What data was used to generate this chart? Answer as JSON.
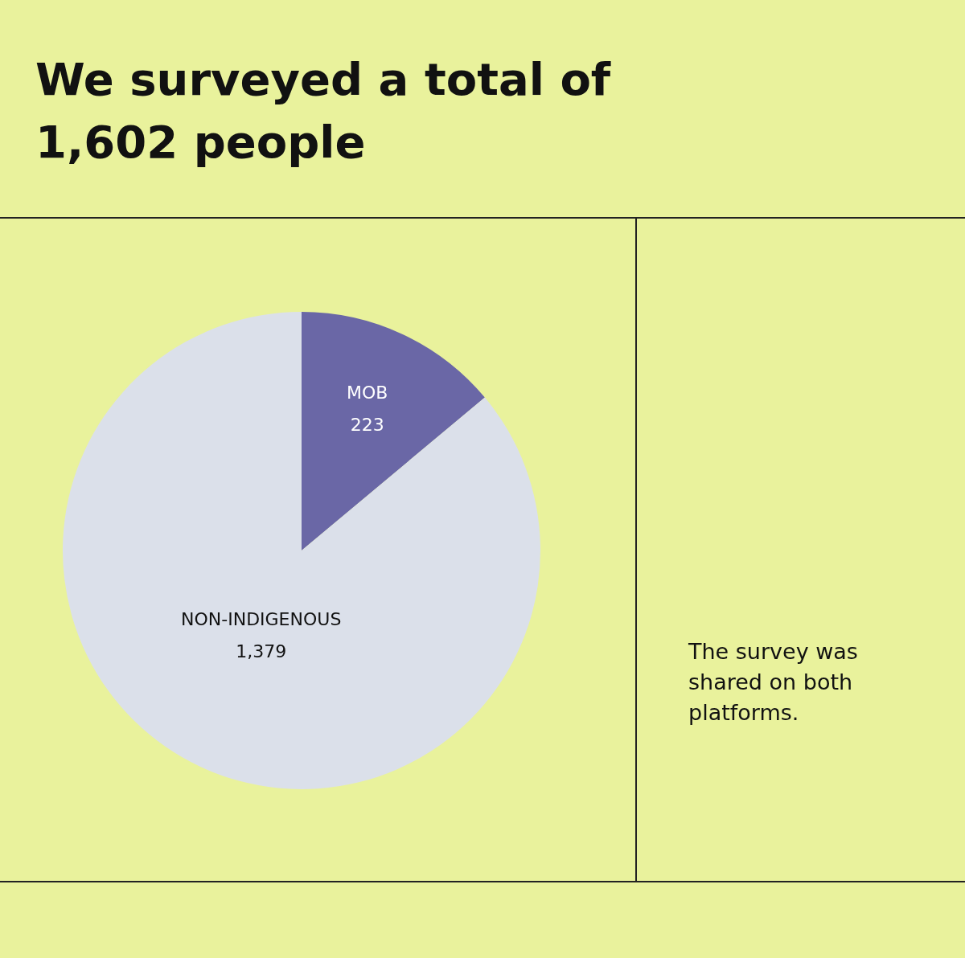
{
  "chart_data": {
    "type": "pie",
    "title": "We surveyed a total of 1,602 people",
    "categories": [
      "MOB",
      "NON-INDIGENOUS"
    ],
    "values": [
      223,
      1379
    ],
    "colors": [
      "#6a67a6",
      "#dbe0ea"
    ],
    "value_labels": [
      "223",
      "1,379"
    ],
    "annotations": [
      "The survey was shared on both platforms."
    ]
  }
}
